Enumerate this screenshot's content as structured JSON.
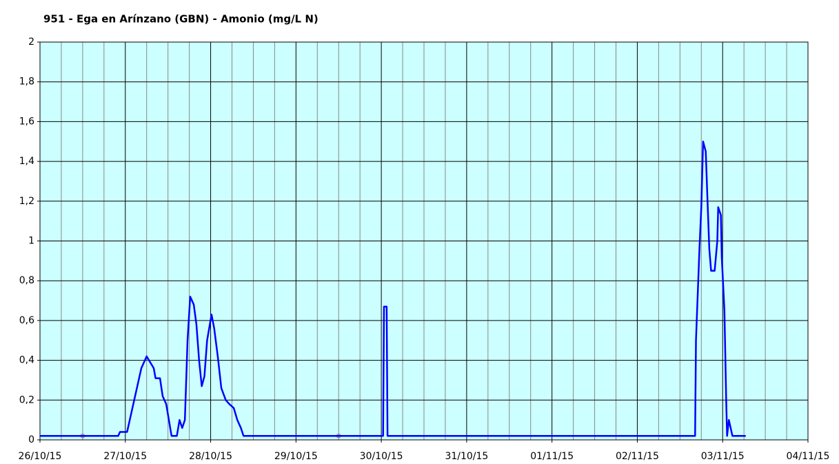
{
  "chart_data": {
    "type": "line",
    "title": "951 - Ega en Arínzano (GBN) - Amonio (mg/L N)",
    "x": [
      "2015-10-26T00:00",
      "2015-10-26T22:00",
      "2015-10-26T22:30",
      "2015-10-27T00:30",
      "2015-10-27T01:30",
      "2015-10-27T02:30",
      "2015-10-27T03:30",
      "2015-10-27T04:30",
      "2015-10-27T06:00",
      "2015-10-27T07:00",
      "2015-10-27T08:00",
      "2015-10-27T08:30",
      "2015-10-27T09:45",
      "2015-10-27T10:30",
      "2015-10-27T11:30",
      "2015-10-27T13:00",
      "2015-10-27T14:30",
      "2015-10-27T15:15",
      "2015-10-27T16:00",
      "2015-10-27T16:45",
      "2015-10-27T17:30",
      "2015-10-27T18:15",
      "2015-10-27T19:15",
      "2015-10-27T20:00",
      "2015-10-27T20:45",
      "2015-10-27T21:30",
      "2015-10-27T22:15",
      "2015-10-27T23:00",
      "2015-10-28T00:15",
      "2015-10-28T01:00",
      "2015-10-28T02:00",
      "2015-10-28T03:00",
      "2015-10-28T04:15",
      "2015-10-28T05:15",
      "2015-10-28T06:30",
      "2015-10-28T07:30",
      "2015-10-28T08:30",
      "2015-10-28T09:15",
      "2015-10-30T00:30",
      "2015-10-30T00:45",
      "2015-10-30T01:30",
      "2015-10-30T01:45",
      "2015-11-02T16:15",
      "2015-11-02T16:30",
      "2015-11-02T17:30",
      "2015-11-02T18:00",
      "2015-11-02T18:30",
      "2015-11-02T19:15",
      "2015-11-02T19:45",
      "2015-11-02T20:15",
      "2015-11-02T20:45",
      "2015-11-02T21:45",
      "2015-11-02T22:30",
      "2015-11-02T22:45",
      "2015-11-02T23:30",
      "2015-11-02T23:45",
      "2015-11-03T00:30",
      "2015-11-03T01:00",
      "2015-11-03T01:15",
      "2015-11-03T01:45",
      "2015-11-03T02:15",
      "2015-11-03T02:45",
      "2015-11-03T06:30"
    ],
    "series": [
      {
        "color": "#0000ff",
        "values": [
          0.02,
          0.02,
          0.04,
          0.04,
          0.12,
          0.2,
          0.28,
          0.36,
          0.42,
          0.39,
          0.36,
          0.31,
          0.31,
          0.22,
          0.18,
          0.02,
          0.02,
          0.1,
          0.06,
          0.1,
          0.5,
          0.72,
          0.68,
          0.58,
          0.4,
          0.27,
          0.32,
          0.5,
          0.63,
          0.56,
          0.42,
          0.26,
          0.2,
          0.18,
          0.16,
          0.1,
          0.06,
          0.02,
          0.02,
          0.67,
          0.67,
          0.02,
          0.02,
          0.5,
          0.97,
          1.17,
          1.5,
          1.45,
          1.2,
          0.96,
          0.85,
          0.85,
          1.0,
          1.17,
          1.13,
          0.92,
          0.65,
          0.2,
          0.02,
          0.1,
          0.06,
          0.02,
          0.02
        ]
      }
    ],
    "markers": {
      "color": "#999999",
      "x": [
        "2015-10-26T12:00",
        "2015-10-29T12:00"
      ],
      "values": [
        0.02,
        0.02
      ]
    },
    "xlim": [
      "2015-10-26T00:00",
      "2015-11-04T00:00"
    ],
    "xticks": [
      {
        "value": "2015-10-26T00:00",
        "label": "26/10/15"
      },
      {
        "value": "2015-10-27T00:00",
        "label": "27/10/15"
      },
      {
        "value": "2015-10-28T00:00",
        "label": "28/10/15"
      },
      {
        "value": "2015-10-29T00:00",
        "label": "29/10/15"
      },
      {
        "value": "2015-10-30T00:00",
        "label": "30/10/15"
      },
      {
        "value": "2015-10-31T00:00",
        "label": "31/10/15"
      },
      {
        "value": "2015-11-01T00:00",
        "label": "01/11/15"
      },
      {
        "value": "2015-11-02T00:00",
        "label": "02/11/15"
      },
      {
        "value": "2015-11-03T00:00",
        "label": "03/11/15"
      },
      {
        "value": "2015-11-04T00:00",
        "label": "04/11/15"
      }
    ],
    "ylim": [
      0,
      2
    ],
    "yticks": [
      0,
      {
        "value": 0.2,
        "label": "0,2"
      },
      {
        "value": 0.4,
        "label": "0,4"
      },
      {
        "value": 0.6,
        "label": "0,6"
      },
      {
        "value": 0.8,
        "label": "0,8"
      },
      1,
      {
        "value": 1.2,
        "label": "1,2"
      },
      {
        "value": 1.4,
        "label": "1,4"
      },
      {
        "value": 1.6,
        "label": "1,6"
      },
      {
        "value": 1.8,
        "label": "1,8"
      },
      2
    ],
    "grid": true,
    "plot_color": "#ccffff"
  }
}
